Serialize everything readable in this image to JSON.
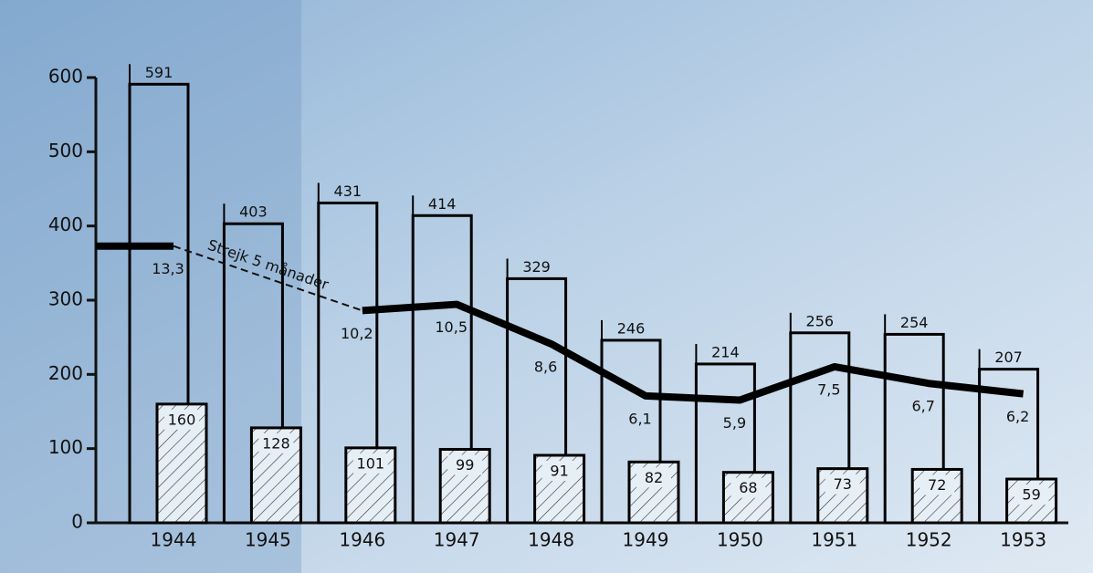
{
  "chart_data": {
    "type": "bar",
    "categories": [
      "1944",
      "1945",
      "1946",
      "1947",
      "1948",
      "1949",
      "1950",
      "1951",
      "1952",
      "1953"
    ],
    "ylim": [
      0,
      600
    ],
    "yticks": [
      0,
      100,
      200,
      300,
      400,
      500,
      600
    ],
    "y2lim": [
      0,
      21.4
    ],
    "annotation": "Strejk 5 månader",
    "series": [
      {
        "color": "#000000",
        "values": [
          591,
          403,
          431,
          414,
          329,
          246,
          214,
          256,
          254,
          207
        ]
      },
      {
        "color": "#000000",
        "hatch": true,
        "values": [
          160,
          128,
          101,
          99,
          91,
          82,
          68,
          73,
          72,
          59
        ]
      },
      {
        "type": "line",
        "axis": "y2",
        "color": "#000000",
        "values": [
          13.3,
          null,
          10.2,
          10.5,
          8.6,
          6.1,
          5.9,
          7.5,
          6.7,
          6.2
        ],
        "value_labels": [
          "13,3",
          null,
          "10,2",
          "10,5",
          "8,6",
          "6,1",
          "5,9",
          "7,5",
          "6,7",
          "6,2"
        ]
      }
    ]
  }
}
